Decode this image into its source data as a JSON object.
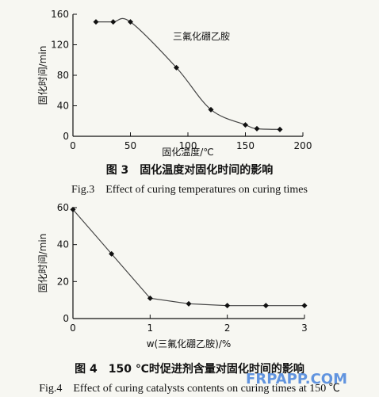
{
  "chart_data": [
    {
      "type": "line",
      "x": [
        20,
        35,
        50,
        90,
        120,
        150,
        160,
        180
      ],
      "y": [
        150,
        150,
        150,
        90,
        35,
        15,
        10,
        9
      ],
      "series_label": "三氟化硼乙胺",
      "xlabel": "固化温度/℃",
      "ylabel": "固化时间/min",
      "xlim": [
        0,
        200
      ],
      "ylim": [
        0,
        160
      ],
      "xticks": [
        "0",
        "50",
        "100",
        "150",
        "200"
      ],
      "yticks": [
        "0",
        "40",
        "80",
        "120",
        "160"
      ],
      "caption_cn": "图 3　固化温度对固化时间的影响",
      "caption_en": "Fig.3　Effect of curing temperatures on curing times"
    },
    {
      "type": "line",
      "x": [
        0,
        0.5,
        1.0,
        1.5,
        2.0,
        2.5,
        3.0
      ],
      "y": [
        59,
        35,
        11,
        8,
        7,
        7,
        7
      ],
      "xlabel": "w(三氟化硼乙胺)/%",
      "ylabel": "固化时间/min",
      "xlim": [
        0,
        3
      ],
      "ylim": [
        0,
        60
      ],
      "xticks": [
        "0",
        "1",
        "2",
        "3"
      ],
      "yticks": [
        "0",
        "20",
        "40",
        "60"
      ],
      "caption_cn": "图 4　150 ℃时促进剂含量对固化时间的影响",
      "caption_en": "Fig.4　Effect of curing catalysts contents on curing times at 150 ℃"
    }
  ],
  "watermark": "FRPAPP.COM"
}
